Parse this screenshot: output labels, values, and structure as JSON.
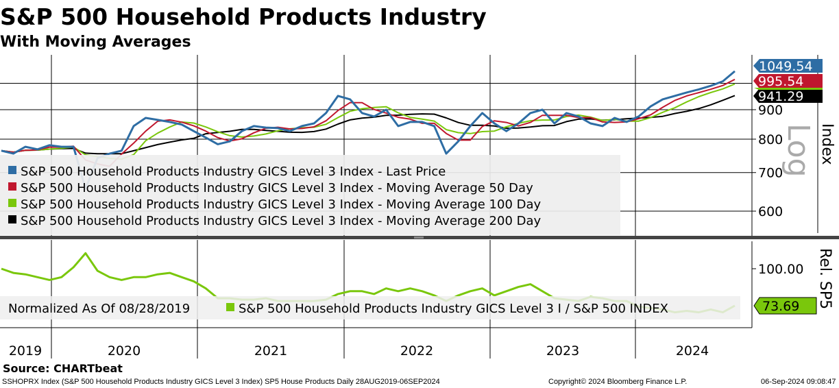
{
  "header": {
    "title": "S&P 500 Household Products Industry",
    "subtitle": "With Moving Averages"
  },
  "colors": {
    "price": "#2e6da4",
    "ma50": "#c0172e",
    "ma100": "#7ac70c",
    "ma200": "#000000",
    "rel": "#7ac70c",
    "rel_light": "#b4dc82"
  },
  "chart_data": [
    {
      "type": "line",
      "title": "S&P 500 Household Products Industry",
      "scale": "log",
      "scale_label": "Log",
      "ylabel": "Index",
      "yticks": [
        "900",
        "800",
        "700",
        "600"
      ],
      "ylim": [
        540,
        1100
      ],
      "x_start": "28AUG2019",
      "x_end": "06SEP2024",
      "categories": [
        "2019",
        "2020",
        "2021",
        "2022",
        "2023",
        "2024"
      ],
      "legend": [
        "S&P 500 Household Products Industry GICS Level 3 Index - Last Price",
        "S&P 500 Household Products Industry GICS Level 3 Index - Moving Average 50 Day",
        "S&P 500 Household Products Industry GICS Level 3 Index - Moving Average 100 Day",
        "S&P 500 Household Products Industry GICS Level 3 Index - Moving Average 200 Day"
      ],
      "last_values": {
        "price": "1049.54",
        "ma50": "995.54",
        "ma200": "941.29"
      },
      "price_monthly": [
        764,
        755,
        776,
        768,
        781,
        776,
        776,
        656,
        742,
        755,
        764,
        843,
        871,
        864,
        857,
        848,
        826,
        805,
        784,
        793,
        826,
        843,
        838,
        836,
        826,
        843,
        852,
        888,
        951,
        938,
        888,
        876,
        900,
        843,
        857,
        857,
        843,
        755,
        793,
        843,
        888,
        852,
        826,
        852,
        888,
        900,
        852,
        888,
        876,
        852,
        843,
        871,
        857,
        876,
        912,
        938,
        951,
        964,
        976,
        990,
        1008,
        1049.54
      ],
      "ma_windows_months": {
        "ma50": 2.5,
        "ma100": 5,
        "ma200": 10
      }
    },
    {
      "type": "line",
      "ylabel": "Rel. SP5",
      "yticks": [
        "100.00"
      ],
      "ylim": [
        58,
        120
      ],
      "legend_prefix": "Normalized As Of 08/28/2019",
      "legend": "S&P 500 Household Products Industry GICS Level 3 I / S&P 500 INDEX",
      "last_value": "73.69",
      "values_monthly": [
        100,
        97,
        96,
        94,
        92,
        94,
        101,
        111,
        98.5,
        94,
        92,
        94,
        94,
        96,
        97,
        94,
        91,
        86,
        79,
        79,
        78,
        78,
        79,
        77,
        77,
        77,
        77,
        78,
        82,
        84,
        84,
        82,
        86,
        84,
        86,
        84,
        81,
        77,
        81,
        84,
        86,
        81,
        84,
        87,
        89,
        84,
        79,
        78,
        77,
        80,
        79,
        77,
        77,
        73,
        72,
        71,
        69,
        70,
        69,
        71,
        69,
        73.69
      ]
    }
  ],
  "footer": {
    "source": "Source: CHARTbeat",
    "info": "SSHOPRX Index (S&P 500 Household Products Industry GICS Level 3 Index) SP5 House Products  Daily 28AUG2019-06SEP2024",
    "copyright": "Copyright© 2024 Bloomberg Finance L.P.",
    "timestamp": "06-Sep-2024 09:08:47"
  }
}
